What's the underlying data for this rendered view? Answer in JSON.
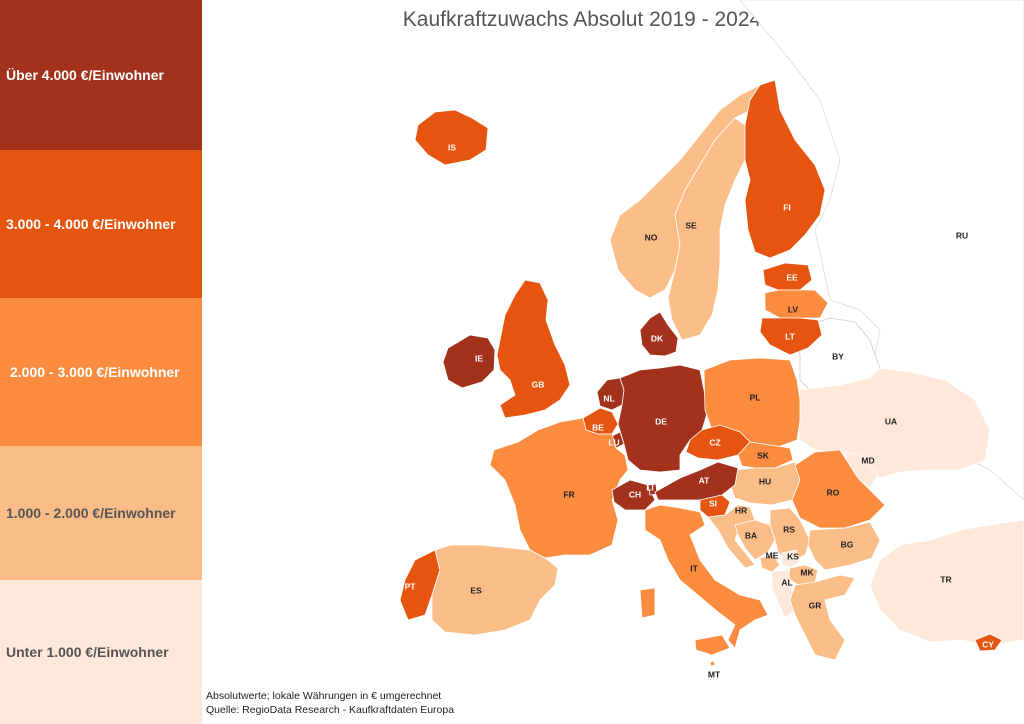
{
  "title": "Kaufkraftzuwachs Absolut 2019 - 2024",
  "legend": [
    {
      "label": "Über 4.000 €/Einwohner",
      "color": "#a3321d",
      "text_color": "#ffffff"
    },
    {
      "label": "3.000 - 4.000 €/Einwohner",
      "color": "#e5550f",
      "text_color": "#ffffff"
    },
    {
      "label": "2.000 -  3.000 €/Einwohner",
      "color": "#fa8b3f",
      "text_color": "#ffffff"
    },
    {
      "label": "1.000 - 2.000 €/Einwohner",
      "color": "#fbbd87",
      "text_color": "#555555"
    },
    {
      "label": "Unter 1.000  €/Einwohner",
      "color": "#fde8da",
      "text_color": "#555555"
    }
  ],
  "countries": [
    {
      "code": "IS",
      "cls": 1
    },
    {
      "code": "NO",
      "cls": 3
    },
    {
      "code": "SE",
      "cls": 3
    },
    {
      "code": "FI",
      "cls": 1
    },
    {
      "code": "RU",
      "cls": null
    },
    {
      "code": "EE",
      "cls": 1
    },
    {
      "code": "LV",
      "cls": 2
    },
    {
      "code": "LT",
      "cls": 1
    },
    {
      "code": "BY",
      "cls": null
    },
    {
      "code": "IE",
      "cls": 0
    },
    {
      "code": "GB",
      "cls": 1
    },
    {
      "code": "DK",
      "cls": 0
    },
    {
      "code": "NL",
      "cls": 0
    },
    {
      "code": "DE",
      "cls": 0
    },
    {
      "code": "PL",
      "cls": 2
    },
    {
      "code": "UA",
      "cls": 4
    },
    {
      "code": "BE",
      "cls": 1
    },
    {
      "code": "LU",
      "cls": 0
    },
    {
      "code": "CZ",
      "cls": 1
    },
    {
      "code": "SK",
      "cls": 2
    },
    {
      "code": "MD",
      "cls": 4
    },
    {
      "code": "FR",
      "cls": 2
    },
    {
      "code": "CH",
      "cls": 0
    },
    {
      "code": "LI",
      "cls": 0
    },
    {
      "code": "AT",
      "cls": 0
    },
    {
      "code": "HU",
      "cls": 3
    },
    {
      "code": "RO",
      "cls": 2
    },
    {
      "code": "SI",
      "cls": 1
    },
    {
      "code": "HR",
      "cls": 3
    },
    {
      "code": "BA",
      "cls": 3
    },
    {
      "code": "RS",
      "cls": 3
    },
    {
      "code": "BG",
      "cls": 3
    },
    {
      "code": "ME",
      "cls": 3
    },
    {
      "code": "KS",
      "cls": 4
    },
    {
      "code": "MK",
      "cls": 3
    },
    {
      "code": "AL",
      "cls": 4
    },
    {
      "code": "TR",
      "cls": 4
    },
    {
      "code": "PT",
      "cls": 1
    },
    {
      "code": "ES",
      "cls": 3
    },
    {
      "code": "IT",
      "cls": 2
    },
    {
      "code": "GR",
      "cls": 3
    },
    {
      "code": "MT",
      "cls": 2
    },
    {
      "code": "CY",
      "cls": 1
    }
  ],
  "footer": {
    "line1": "Absolutwerte; lokale Währungen in € umgerechnet",
    "line2": "Quelle: RegioData Research -  Kaufkraftdaten Europa"
  }
}
